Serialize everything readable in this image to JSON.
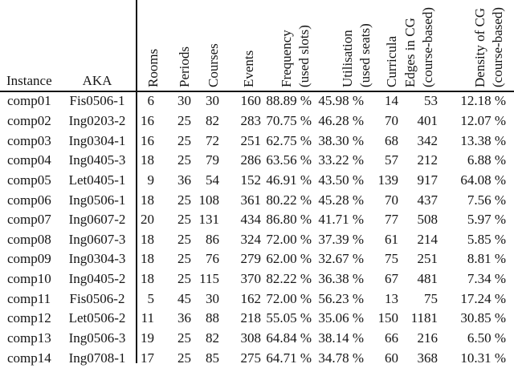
{
  "colors": {
    "text": "#141414",
    "background": "#ffffff",
    "rule": "#141414"
  },
  "table": {
    "headers": {
      "instance": "Instance",
      "aka": "AKA"
    },
    "rotated_columns": [
      {
        "id": "rooms",
        "lines": [
          "Rooms"
        ]
      },
      {
        "id": "periods",
        "lines": [
          "Periods"
        ]
      },
      {
        "id": "courses",
        "lines": [
          "Courses"
        ]
      },
      {
        "id": "events",
        "lines": [
          "Events"
        ]
      },
      {
        "id": "frequency",
        "lines": [
          "Frequency",
          "(used slots)"
        ]
      },
      {
        "id": "utilisation",
        "lines": [
          "Utilisation",
          "(used seats)"
        ]
      },
      {
        "id": "curricula",
        "lines": [
          "Curricula"
        ]
      },
      {
        "id": "edges-in-cg",
        "lines": [
          "Edges in CG",
          "(course-based)"
        ]
      },
      {
        "id": "density-of-cg",
        "lines": [
          "Density of CG",
          "(course-based)"
        ]
      }
    ],
    "rows": [
      {
        "instance": "comp01",
        "aka": "Fis0506-1",
        "rooms": "6",
        "periods": "30",
        "courses": "30",
        "events": "160",
        "frequency": "88.89 %",
        "utilisation": "45.98 %",
        "curricula": "14",
        "edges": "53",
        "density": "12.18 %"
      },
      {
        "instance": "comp02",
        "aka": "Ing0203-2",
        "rooms": "16",
        "periods": "25",
        "courses": "82",
        "events": "283",
        "frequency": "70.75 %",
        "utilisation": "46.28 %",
        "curricula": "70",
        "edges": "401",
        "density": "12.07 %"
      },
      {
        "instance": "comp03",
        "aka": "Ing0304-1",
        "rooms": "16",
        "periods": "25",
        "courses": "72",
        "events": "251",
        "frequency": "62.75 %",
        "utilisation": "38.30 %",
        "curricula": "68",
        "edges": "342",
        "density": "13.38 %"
      },
      {
        "instance": "comp04",
        "aka": "Ing0405-3",
        "rooms": "18",
        "periods": "25",
        "courses": "79",
        "events": "286",
        "frequency": "63.56 %",
        "utilisation": "33.22 %",
        "curricula": "57",
        "edges": "212",
        "density": "6.88 %"
      },
      {
        "instance": "comp05",
        "aka": "Let0405-1",
        "rooms": "9",
        "periods": "36",
        "courses": "54",
        "events": "152",
        "frequency": "46.91 %",
        "utilisation": "43.50 %",
        "curricula": "139",
        "edges": "917",
        "density": "64.08 %"
      },
      {
        "instance": "comp06",
        "aka": "Ing0506-1",
        "rooms": "18",
        "periods": "25",
        "courses": "108",
        "events": "361",
        "frequency": "80.22 %",
        "utilisation": "45.28 %",
        "curricula": "70",
        "edges": "437",
        "density": "7.56 %"
      },
      {
        "instance": "comp07",
        "aka": "Ing0607-2",
        "rooms": "20",
        "periods": "25",
        "courses": "131",
        "events": "434",
        "frequency": "86.80 %",
        "utilisation": "41.71 %",
        "curricula": "77",
        "edges": "508",
        "density": "5.97 %"
      },
      {
        "instance": "comp08",
        "aka": "Ing0607-3",
        "rooms": "18",
        "periods": "25",
        "courses": "86",
        "events": "324",
        "frequency": "72.00 %",
        "utilisation": "37.39 %",
        "curricula": "61",
        "edges": "214",
        "density": "5.85 %"
      },
      {
        "instance": "comp09",
        "aka": "Ing0304-3",
        "rooms": "18",
        "periods": "25",
        "courses": "76",
        "events": "279",
        "frequency": "62.00 %",
        "utilisation": "32.67 %",
        "curricula": "75",
        "edges": "251",
        "density": "8.81 %"
      },
      {
        "instance": "comp10",
        "aka": "Ing0405-2",
        "rooms": "18",
        "periods": "25",
        "courses": "115",
        "events": "370",
        "frequency": "82.22 %",
        "utilisation": "36.38 %",
        "curricula": "67",
        "edges": "481",
        "density": "7.34 %"
      },
      {
        "instance": "comp11",
        "aka": "Fis0506-2",
        "rooms": "5",
        "periods": "45",
        "courses": "30",
        "events": "162",
        "frequency": "72.00 %",
        "utilisation": "56.23 %",
        "curricula": "13",
        "edges": "75",
        "density": "17.24 %"
      },
      {
        "instance": "comp12",
        "aka": "Let0506-2",
        "rooms": "11",
        "periods": "36",
        "courses": "88",
        "events": "218",
        "frequency": "55.05 %",
        "utilisation": "35.06 %",
        "curricula": "150",
        "edges": "1181",
        "density": "30.85 %"
      },
      {
        "instance": "comp13",
        "aka": "Ing0506-3",
        "rooms": "19",
        "periods": "25",
        "courses": "82",
        "events": "308",
        "frequency": "64.84 %",
        "utilisation": "38.14 %",
        "curricula": "66",
        "edges": "216",
        "density": "6.50 %"
      },
      {
        "instance": "comp14",
        "aka": "Ing0708-1",
        "rooms": "17",
        "periods": "25",
        "courses": "85",
        "events": "275",
        "frequency": "64.71 %",
        "utilisation": "34.78 %",
        "curricula": "60",
        "edges": "368",
        "density": "10.31 %"
      }
    ]
  }
}
